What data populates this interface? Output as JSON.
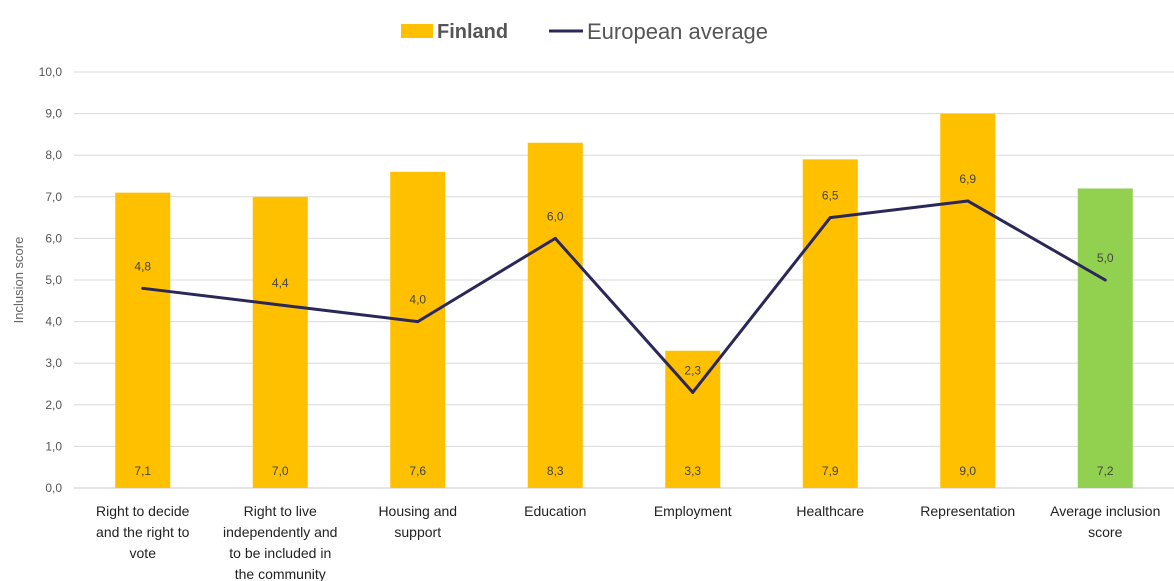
{
  "chart_data": {
    "type": "bar",
    "categories": [
      [
        "Right to decide",
        "and the right to",
        "vote"
      ],
      [
        "Right to live",
        "independently and",
        "to be included in",
        "the community"
      ],
      [
        "Housing and",
        "support"
      ],
      [
        "Education"
      ],
      [
        "Employment"
      ],
      [
        "Healthcare"
      ],
      [
        "Representation"
      ],
      [
        "Average inclusion",
        "score"
      ]
    ],
    "series": [
      {
        "name": "Finland",
        "kind": "bar",
        "values": [
          7.1,
          7.0,
          7.6,
          8.3,
          3.3,
          7.9,
          9.0,
          7.2
        ],
        "labels": [
          "7,1",
          "7,0",
          "7,6",
          "8,3",
          "3,3",
          "7,9",
          "9,0",
          "7,2"
        ],
        "color": "#FFC000",
        "highlight_color": "#92D050",
        "highlight_index": 7
      },
      {
        "name": "European average",
        "kind": "line",
        "values": [
          4.8,
          4.4,
          4.0,
          6.0,
          2.3,
          6.5,
          6.9,
          5.0
        ],
        "labels": [
          "4,8",
          "4,4",
          "4,0",
          "6,0",
          "2,3",
          "6,5",
          "6,9",
          "5,0"
        ],
        "color": "#2B2758"
      }
    ],
    "ylabel": "Inclusion score",
    "ylim": [
      0,
      10
    ],
    "yticks": [
      "0,0",
      "1,0",
      "2,0",
      "3,0",
      "4,0",
      "5,0",
      "6,0",
      "7,0",
      "8,0",
      "9,0",
      "10,0"
    ],
    "grid": true,
    "legend_position": "top-center"
  }
}
